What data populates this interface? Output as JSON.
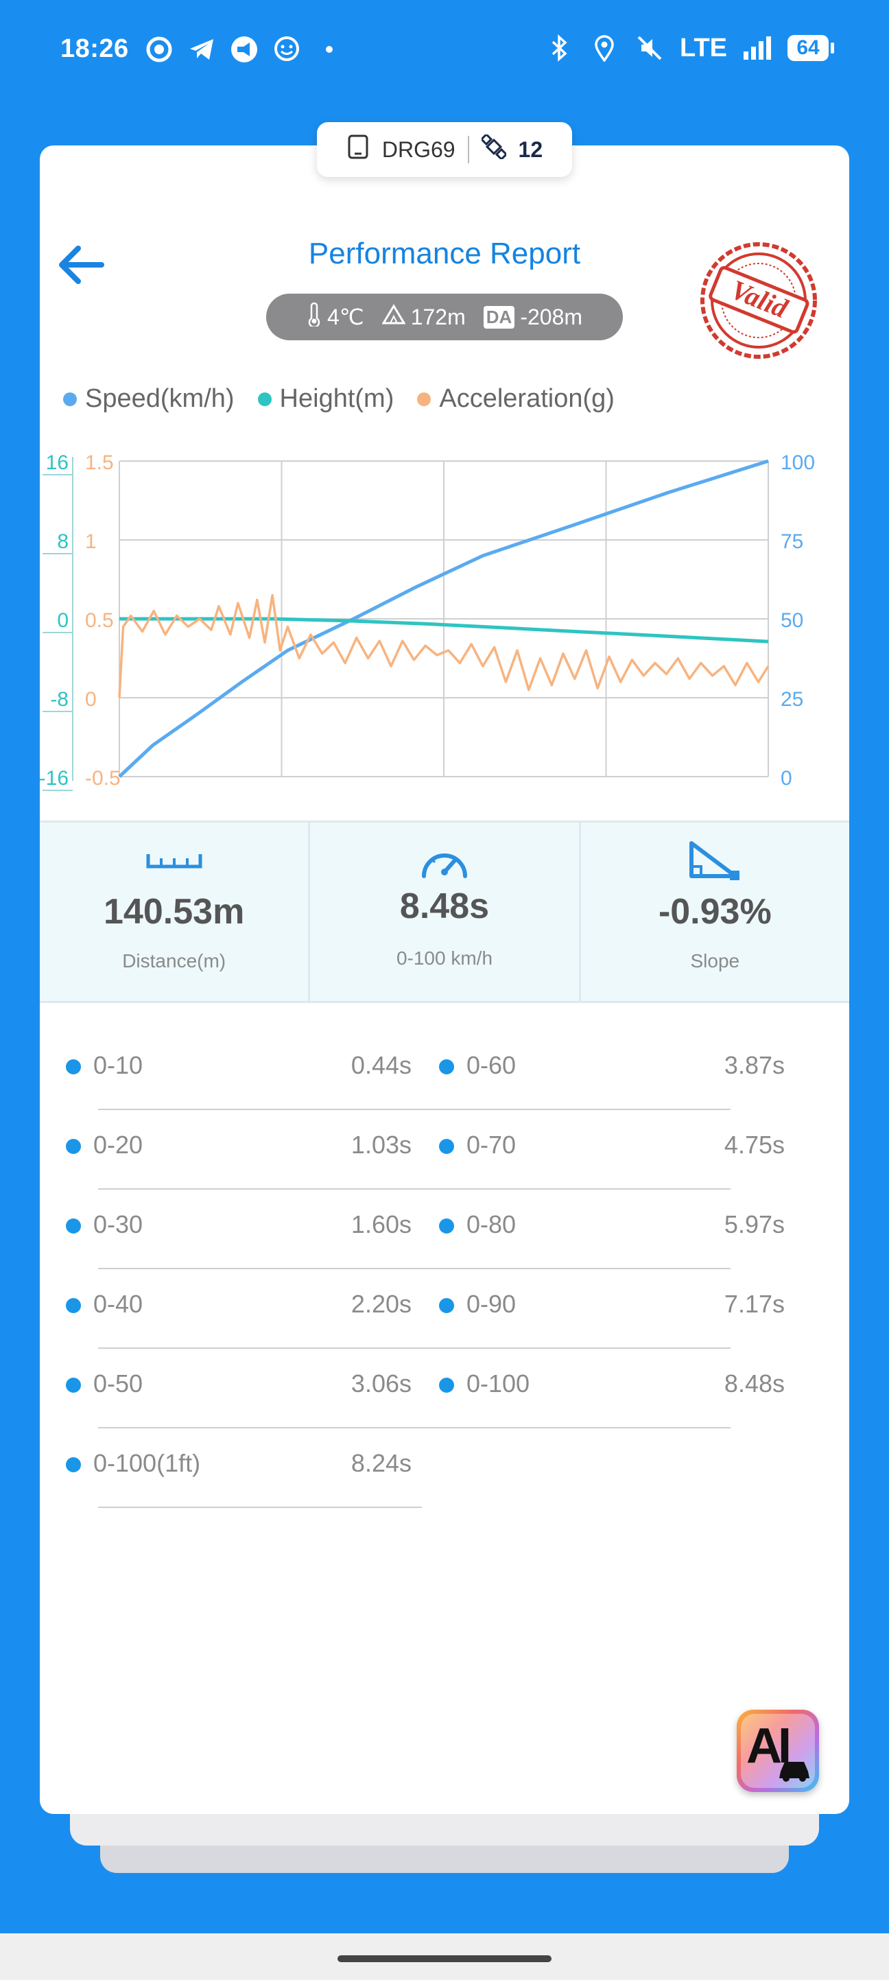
{
  "status_bar": {
    "time": "18:26",
    "network": "LTE",
    "battery": "64",
    "left_icons": [
      "chat-bubble-icon",
      "telegram-icon",
      "megaphone-icon",
      "smiley-icon",
      "dot-icon"
    ],
    "right_icons": [
      "bluetooth-icon",
      "location-icon",
      "mute-icon",
      "signal-icon",
      "battery-icon"
    ]
  },
  "device": {
    "id": "DRG69",
    "satellites": "12"
  },
  "header": {
    "title": "Performance Report",
    "stamp": "Valid"
  },
  "conditions": {
    "temperature": "4℃",
    "altitude": "172m",
    "da_label": "DA",
    "density_altitude": "-208m"
  },
  "legend": [
    {
      "label": "Speed(km/h)",
      "color": "#5aaaf0"
    },
    {
      "label": "Height(m)",
      "color": "#2ec4c2"
    },
    {
      "label": "Acceleration(g)",
      "color": "#f7b37f"
    }
  ],
  "chart_data": {
    "type": "line",
    "x_range": [
      0,
      8.48
    ],
    "axes": {
      "height": {
        "ticks": [
          "16",
          "8",
          "0",
          "-8",
          "-16"
        ],
        "range": [
          -16,
          16
        ],
        "color": "#2ec4c2"
      },
      "acceleration": {
        "ticks": [
          "1.5",
          "1",
          "0.5",
          "0",
          "-0.5"
        ],
        "range": [
          -0.5,
          1.5
        ],
        "color": "#f7b37f"
      },
      "speed": {
        "ticks": [
          "100",
          "75",
          "50",
          "25",
          "0"
        ],
        "range": [
          0,
          100
        ],
        "color": "#5aaaf0"
      }
    },
    "grid": true,
    "series": [
      {
        "name": "Speed(km/h)",
        "color": "#5aaaf0",
        "x": [
          0,
          0.44,
          1.03,
          1.6,
          2.2,
          3.06,
          3.87,
          4.75,
          5.97,
          7.17,
          8.48
        ],
        "values": [
          0,
          10,
          20,
          30,
          40,
          50,
          60,
          70,
          80,
          90,
          100
        ]
      },
      {
        "name": "Height(m)",
        "color": "#2ec4c2",
        "x": [
          0,
          1,
          2,
          3,
          4,
          5,
          6,
          7,
          8,
          8.48
        ],
        "values": [
          0,
          0,
          0,
          -0.2,
          -0.5,
          -0.9,
          -1.3,
          -1.7,
          -2.1,
          -2.3
        ]
      },
      {
        "name": "Acceleration(g)",
        "color": "#f7b37f",
        "x": [
          0,
          0.05,
          0.15,
          0.3,
          0.45,
          0.6,
          0.75,
          0.9,
          1.05,
          1.2,
          1.3,
          1.45,
          1.55,
          1.7,
          1.8,
          1.9,
          2.0,
          2.1,
          2.2,
          2.35,
          2.5,
          2.65,
          2.8,
          2.95,
          3.1,
          3.25,
          3.4,
          3.55,
          3.7,
          3.85,
          4.0,
          4.15,
          4.3,
          4.45,
          4.6,
          4.75,
          4.9,
          5.05,
          5.2,
          5.35,
          5.5,
          5.65,
          5.8,
          5.95,
          6.1,
          6.25,
          6.4,
          6.55,
          6.7,
          6.85,
          7.0,
          7.15,
          7.3,
          7.45,
          7.6,
          7.75,
          7.9,
          8.05,
          8.2,
          8.35,
          8.48
        ],
        "values": [
          0.0,
          0.45,
          0.52,
          0.42,
          0.55,
          0.4,
          0.52,
          0.45,
          0.5,
          0.43,
          0.58,
          0.4,
          0.6,
          0.38,
          0.62,
          0.35,
          0.65,
          0.3,
          0.45,
          0.25,
          0.4,
          0.28,
          0.35,
          0.22,
          0.38,
          0.25,
          0.36,
          0.2,
          0.36,
          0.24,
          0.33,
          0.27,
          0.3,
          0.22,
          0.34,
          0.2,
          0.32,
          0.1,
          0.3,
          0.05,
          0.25,
          0.08,
          0.28,
          0.12,
          0.3,
          0.06,
          0.26,
          0.1,
          0.24,
          0.14,
          0.22,
          0.15,
          0.25,
          0.12,
          0.22,
          0.14,
          0.2,
          0.08,
          0.22,
          0.1,
          0.2
        ]
      }
    ]
  },
  "stats": {
    "distance": {
      "value": "140.53m",
      "label": "Distance(m)"
    },
    "time": {
      "value": "8.48s",
      "label": "0-100 km/h"
    },
    "slope": {
      "value": "-0.93%",
      "label": "Slope"
    }
  },
  "splits_left": [
    {
      "range": "0-10",
      "time": "0.44s"
    },
    {
      "range": "0-20",
      "time": "1.03s"
    },
    {
      "range": "0-30",
      "time": "1.60s"
    },
    {
      "range": "0-40",
      "time": "2.20s"
    },
    {
      "range": "0-50",
      "time": "3.06s"
    },
    {
      "range": "0-100(1ft)",
      "time": "8.24s"
    }
  ],
  "splits_right": [
    {
      "range": "0-60",
      "time": "3.87s"
    },
    {
      "range": "0-70",
      "time": "4.75s"
    },
    {
      "range": "0-80",
      "time": "5.97s"
    },
    {
      "range": "0-90",
      "time": "7.17s"
    },
    {
      "range": "0-100",
      "time": "8.48s"
    }
  ],
  "ai_button": {
    "label": "AI"
  }
}
